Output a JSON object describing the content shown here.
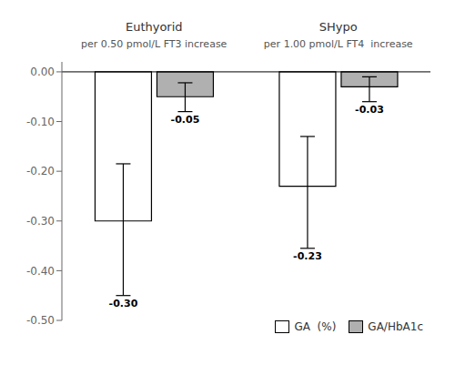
{
  "chart_data": {
    "type": "bar",
    "categories": [
      "Euthyorid",
      "SHypo"
    ],
    "annotations": [
      {
        "category": "Euthyorid",
        "text": "per 0.50 pmol/L FT3 increase"
      },
      {
        "category": "SHypo",
        "text": "per 1.00 pmol/L FT4  increase"
      }
    ],
    "series": [
      {
        "name": "GA  (%)",
        "color": "#ffffff",
        "values": [
          -0.3,
          -0.23
        ],
        "value_labels": [
          "-0.30",
          "-0.23"
        ],
        "ci_low": [
          -0.45,
          -0.355
        ],
        "ci_high": [
          -0.185,
          -0.13
        ]
      },
      {
        "name": "GA/HbA1c",
        "color": "#b0b0b0",
        "values": [
          -0.05,
          -0.03
        ],
        "value_labels": [
          "-0.05",
          "-0.03"
        ],
        "ci_low": [
          -0.08,
          -0.06
        ],
        "ci_high": [
          -0.022,
          -0.01
        ]
      }
    ],
    "ylim": [
      -0.5,
      0.02
    ],
    "yticks": [
      {
        "value": 0,
        "label": "0.00"
      },
      {
        "value": -0.1,
        "label": "-0.10"
      },
      {
        "value": -0.2,
        "label": "-0.20"
      },
      {
        "value": -0.3,
        "label": "-0.30"
      },
      {
        "value": -0.4,
        "label": "-0.40"
      },
      {
        "value": -0.5,
        "label": "-0.50"
      }
    ],
    "data_labels": true,
    "legend": "lower right",
    "grid": false
  }
}
